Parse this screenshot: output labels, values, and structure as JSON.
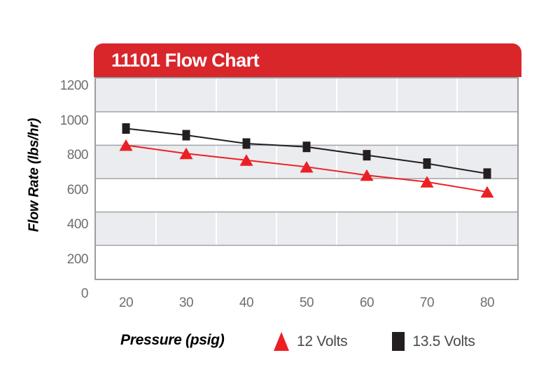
{
  "chart_data": {
    "type": "line",
    "title": "11101 Flow Chart",
    "xlabel": "Pressure (psig)",
    "ylabel": "Flow Rate (lbs/hr)",
    "categories": [
      "20",
      "30",
      "40",
      "50",
      "60",
      "70",
      "80"
    ],
    "yticks": [
      "1200",
      "1000",
      "800",
      "600",
      "400",
      "200",
      "0"
    ],
    "ylim": [
      0,
      1200
    ],
    "ytick_step": 200,
    "grid": "horizontal gray gridlines every 200; white vertical separators between categories; alternating shaded bands",
    "legend_position": "bottom",
    "series": [
      {
        "name": "13.5 Volts",
        "marker": "square",
        "color": "#231f20",
        "values": [
          900,
          860,
          810,
          790,
          740,
          690,
          630
        ]
      },
      {
        "name": "12 Volts",
        "marker": "triangle",
        "color": "#ec2024",
        "values": [
          800,
          750,
          710,
          670,
          620,
          580,
          520
        ]
      }
    ]
  },
  "legend": {
    "items": [
      {
        "label": "12 Volts",
        "marker": "triangle",
        "color": "#ec2024"
      },
      {
        "label": "13.5 Volts",
        "marker": "square",
        "color": "#231f20"
      }
    ]
  },
  "colors": {
    "banner_red": "#d9262b",
    "series_red": "#ec2024",
    "series_black": "#231f20",
    "band_gray": "#ebecef",
    "band_white": "#ffffff",
    "grid_line": "#a2a4a7",
    "vertical_grid_line": "#ffffff",
    "plot_border": "#9b9da0",
    "tick_label": "#6d6e71",
    "legend_text": "#4a4a4c",
    "banner_title_text": "#ffffff",
    "axis_title_text": "#000000"
  }
}
